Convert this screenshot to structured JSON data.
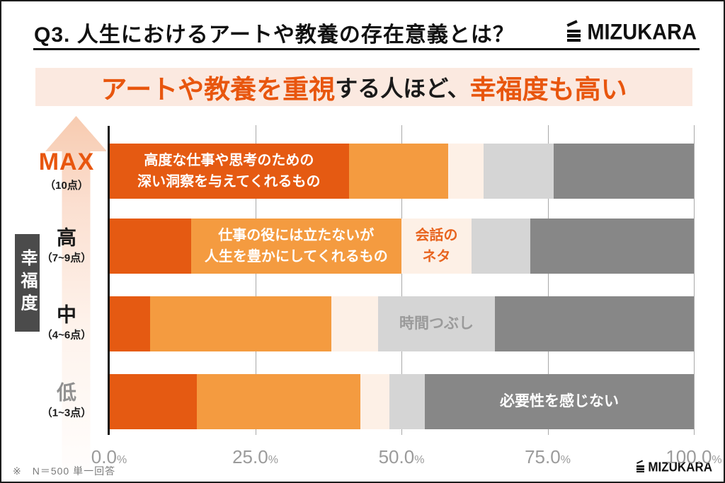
{
  "header": {
    "title": "Q3. 人生におけるアートや教養の存在意義とは？",
    "brand": "MIZUKARA"
  },
  "banner": {
    "part1": "アートや教養を重視",
    "part2": "する人ほど、",
    "part3": "幸福度も高い",
    "bg": "#fbe9e0",
    "accent_color": "#e8560e"
  },
  "chart_data": {
    "type": "bar",
    "stacked": true,
    "orientation": "horizontal",
    "unit": "%",
    "grid": true,
    "y_axis_label": "幸福度",
    "x_ticks": [
      {
        "value": 0,
        "label": "0.0"
      },
      {
        "value": 25,
        "label": "25.0"
      },
      {
        "value": 50,
        "label": "50.0"
      },
      {
        "value": 75,
        "label": "75.0"
      },
      {
        "value": 100,
        "label": "100.0"
      }
    ],
    "percent_sign": "%",
    "legend": [
      "高度な仕事や思考のための深い洞察を与えてくれるもの",
      "仕事の役には立たないが人生を豊かにしてくれるもの",
      "会話のネタ",
      "時間つぶし",
      "必要性を感じない"
    ],
    "palette": [
      "#e55a12",
      "#f49b40",
      "#fdf0e6",
      "#d5d5d5",
      "#878787"
    ],
    "text_colors": {
      "white": "#ffffff",
      "orange": "#e8641f",
      "gray": "#9a9a9a"
    },
    "rows": [
      {
        "category": "MAX",
        "score_range": "（10点）",
        "label_style": "max",
        "segments": [
          {
            "value": 41,
            "text": "高度な仕事や思考のための\n深い洞察を与えてくれるもの",
            "text_color": "white"
          },
          {
            "value": 17
          },
          {
            "value": 6
          },
          {
            "value": 12
          },
          {
            "value": 24
          }
        ]
      },
      {
        "category": "高",
        "score_range": "（7~9点）",
        "label_style": "normal",
        "segments": [
          {
            "value": 14
          },
          {
            "value": 36,
            "text": "仕事の役には立たないが\n人生を豊かにしてくれるもの",
            "text_color": "white"
          },
          {
            "value": 12,
            "text": "会話の\nネタ",
            "text_color": "orange"
          },
          {
            "value": 10
          },
          {
            "value": 28
          }
        ]
      },
      {
        "category": "中",
        "score_range": "（4~6点）",
        "label_style": "normal",
        "segments": [
          {
            "value": 7
          },
          {
            "value": 31
          },
          {
            "value": 8
          },
          {
            "value": 20,
            "text": "時間つぶし",
            "text_color": "gray"
          },
          {
            "value": 34
          }
        ]
      },
      {
        "category": "低",
        "score_range": "（1~3点）",
        "label_style": "muted",
        "segments": [
          {
            "value": 15
          },
          {
            "value": 28
          },
          {
            "value": 5
          },
          {
            "value": 6
          },
          {
            "value": 46,
            "text": "必要性を感じない",
            "text_color": "white"
          }
        ]
      }
    ],
    "label_colors": {
      "max": "#e8560e",
      "normal": "#1a1a1a",
      "muted": "#909090"
    }
  },
  "footer": {
    "footnote": "※　N＝500 単一回答",
    "brand": "MIZUKARA"
  }
}
